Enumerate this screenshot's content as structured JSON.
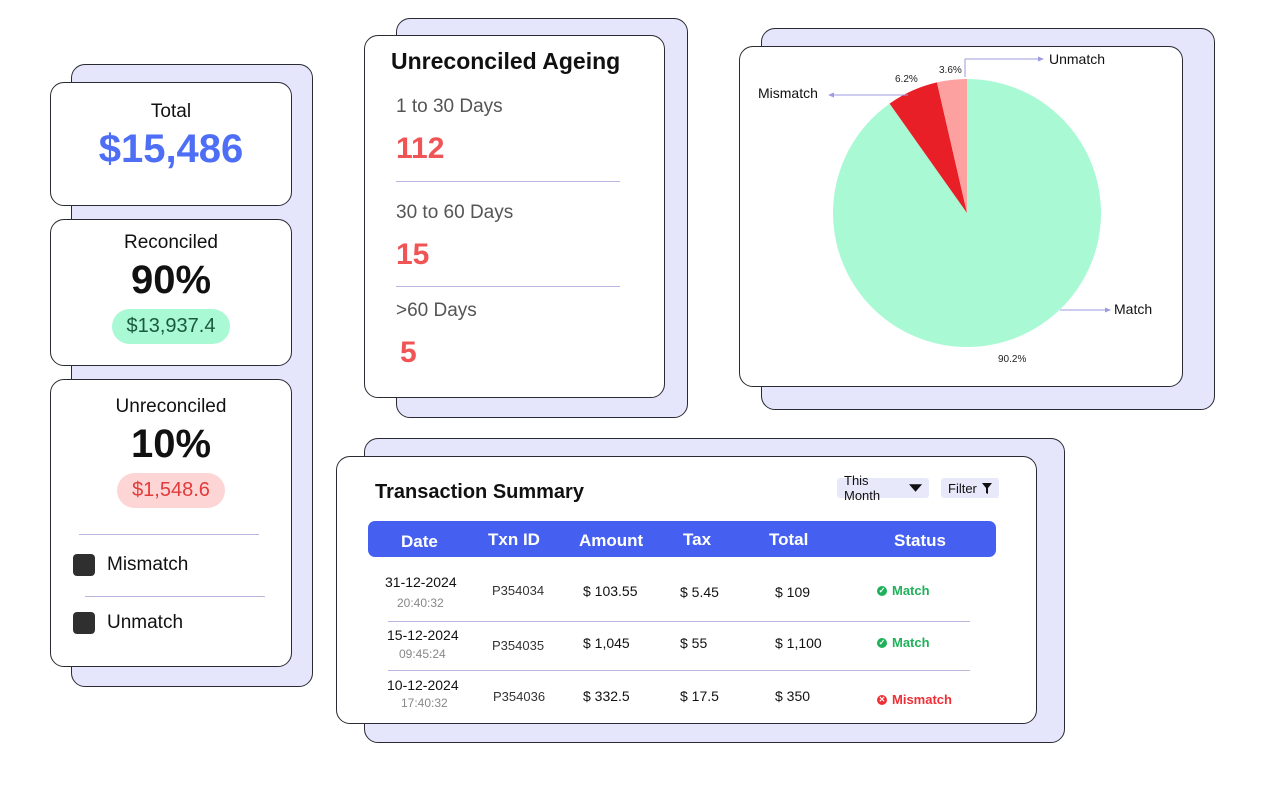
{
  "summary": {
    "total": {
      "label": "Total",
      "value": "$15,486"
    },
    "reconciled": {
      "label": "Reconciled",
      "percent": "90%",
      "amount": "$13,937.4"
    },
    "unreconciled": {
      "label": "Unreconciled",
      "percent": "10%",
      "amount": "$1,548.6"
    },
    "options": [
      {
        "label": "Mismatch"
      },
      {
        "label": "Unmatch"
      }
    ]
  },
  "ageing": {
    "title": "Unreconciled Ageing",
    "buckets": [
      {
        "label": "1 to 30 Days",
        "value": "112"
      },
      {
        "label": "30 to 60 Days",
        "value": "15"
      },
      {
        "label": ">60 Days",
        "value": "5"
      }
    ]
  },
  "chart_data": {
    "type": "pie",
    "slices": [
      {
        "name": "Match",
        "value": 90.2,
        "label": "90.2%",
        "color": "#aaf9d5"
      },
      {
        "name": "Mismatch",
        "value": 6.2,
        "label": "6.2%",
        "color": "#e81f26"
      },
      {
        "name": "Unmatch",
        "value": 3.6,
        "label": "3.6%",
        "color": "#fca0a0"
      }
    ],
    "legend_labels": {
      "match": "Match",
      "mismatch": "Mismatch",
      "unmatch": "Unmatch"
    }
  },
  "transactions": {
    "title": "Transaction Summary",
    "period_label": "This Month",
    "filter_label": "Filter",
    "columns": [
      "Date",
      "Txn ID",
      "Amount",
      "Tax",
      "Total",
      "Status"
    ],
    "rows": [
      {
        "date": "31-12-2024",
        "time": "20:40:32",
        "txn_id": "P354034",
        "amount": "$ 103.55",
        "tax": "$ 5.45",
        "total": "$ 109",
        "status": "Match"
      },
      {
        "date": "15-12-2024",
        "time": "09:45:24",
        "txn_id": "P354035",
        "amount": "$ 1,045",
        "tax": "$ 55",
        "total": "$ 1,100",
        "status": "Match"
      },
      {
        "date": "10-12-2024",
        "time": "17:40:32",
        "txn_id": "P354036",
        "amount": "$ 332.5",
        "tax": "$ 17.5",
        "total": "$ 350",
        "status": "Mismatch"
      }
    ],
    "colors": {
      "header": "#4560f0",
      "match": "#1eb15a",
      "mismatch": "#ef2e35"
    }
  },
  "colors": {
    "total_value": "#4d6ef5",
    "reconciled_pill": "#aaf9d5",
    "unreconciled_pill": "#fdd5d5",
    "ageing_value": "#f05454",
    "shadow": "#e5e6fc"
  }
}
